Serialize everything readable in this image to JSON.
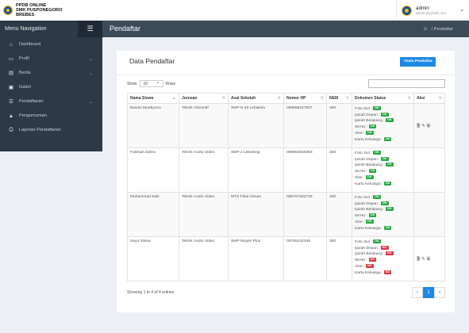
{
  "app": {
    "brand_line1": "PPDB ONLINE",
    "brand_line2": "SMK PUSPONEGORO",
    "brand_line3": "BREBES"
  },
  "user": {
    "name": "admin",
    "email": "admin@gmail.com"
  },
  "navbar": {
    "menu_title": "Menu Navigation",
    "page_title": "Pendaftar",
    "breadcrumb": "Pendaftar"
  },
  "sidebar": {
    "items": [
      {
        "label": "Dashboard",
        "icon": "home-icon"
      },
      {
        "label": "Profil",
        "icon": "folder-icon"
      },
      {
        "label": "Berita",
        "icon": "file-icon"
      },
      {
        "label": "Galeri",
        "icon": "image-icon"
      },
      {
        "label": "Pendaftaran",
        "icon": "list-icon"
      },
      {
        "label": "Pengumuman",
        "icon": "warning-icon"
      },
      {
        "label": "Laporan Pendaftaran",
        "icon": "print-icon"
      }
    ]
  },
  "main": {
    "title": "Data Pendaftar",
    "add_button": "Data Pendaftar",
    "show_label": "Show",
    "rows_label": "Rows",
    "page_size": "10",
    "columns": [
      "Nama Siswa",
      "Jurusan",
      "Asal Sekolah",
      "Nomor HP",
      "NEM",
      "Dokumen Status",
      "Aksi"
    ],
    "doc_labels": [
      "Foto 3x4",
      "Ijazah Depan",
      "Ijazah Belakang",
      "SKHU",
      "Akte",
      "Kartu Keluarga"
    ],
    "rows": [
      {
        "nama": "Basuki Murdiyono",
        "jurusan": "Teknik Otomotif",
        "asal": "SMP N 03 Lebaksiu",
        "hp": "089898227827",
        "nem": "360",
        "docs": [
          "OK",
          "OK",
          "OK",
          "OK",
          "OK",
          "OK"
        ]
      },
      {
        "nama": "Fatimah Zahra",
        "jurusan": "Teknik Audio Video",
        "asal": "SMP 2 Lebeteng",
        "hp": "089893839383",
        "nem": "300",
        "docs": [
          "OK",
          "OK",
          "OK",
          "OK",
          "OK",
          "OK"
        ]
      },
      {
        "nama": "Muhammad Zaki",
        "jurusan": "Teknik Audio Video",
        "asal": "MTS Fikal Aliman",
        "hp": "086767262726",
        "nem": "330",
        "docs": [
          "OK",
          "OK",
          "OK",
          "OK",
          "OK",
          "OK"
        ]
      },
      {
        "nama": "Saya Siswa",
        "jurusan": "Teknik Audio Video",
        "asal": "SMP Negeri Plus",
        "hp": "08765432345",
        "nem": "360",
        "docs": [
          "OK",
          "NO",
          "NO",
          "NO",
          "NO",
          "NO"
        ]
      }
    ],
    "footer_info": "Showing 1 to 4 of 4 entries",
    "pager": {
      "prev": "‹",
      "current": "1",
      "next": "›"
    }
  },
  "colors": {
    "accent": "#1e88e5",
    "ok": "#27a745",
    "no": "#dc3545",
    "sidebar": "#2c3a47"
  }
}
